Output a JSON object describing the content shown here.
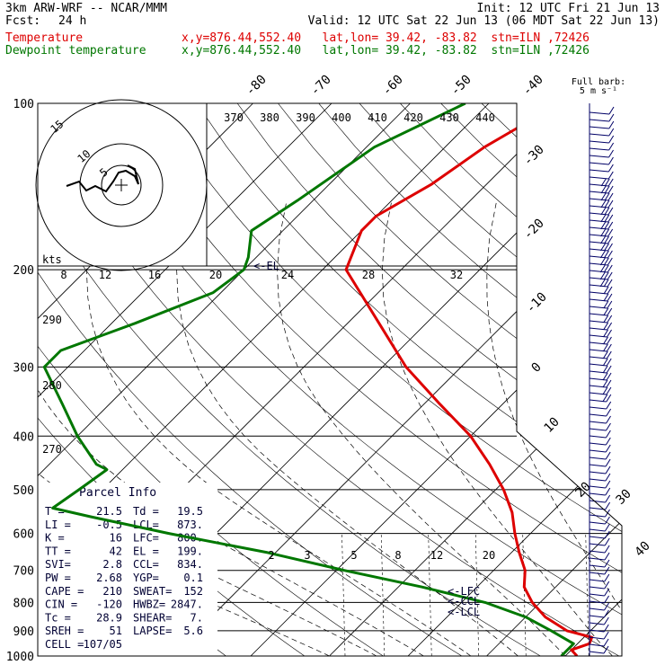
{
  "header": {
    "line1_left": "3km ARW-WRF -- NCAR/MMM",
    "line1_right": "Init: 12 UTC Fri 21 Jun 13",
    "line2_fcst_label": "Fcst:",
    "line2_fcst_value": "24 h",
    "line2_valid": "Valid: 12 UTC Sat 22 Jun 13 (06 MDT Sat 22 Jun 13)",
    "temp_label": "Temperature",
    "temp_info": "x,y=876.44,552.40   lat,lon= 39.42, -83.82  stn=ILN ,72426",
    "dew_label": "Dewpoint temperature",
    "dew_info": "x,y=876.44,552.40   lat,lon= 39.42, -83.82  stn=ILN ,72426",
    "temp_color": "#dd0000",
    "dew_color": "#007700"
  },
  "barb_legend": {
    "line1": "Full barb:",
    "line2": "5 m s⁻¹"
  },
  "hodograph": {
    "speed_unit": "kts",
    "ring_labels": [
      "5",
      "10",
      "15"
    ]
  },
  "parcel_info": {
    "title": "Parcel Info",
    "rows": [
      [
        "T  =",
        "21.5",
        "Td =",
        "19.5"
      ],
      [
        "LI =",
        "-0.5",
        "LCL=",
        "873."
      ],
      [
        "K  =",
        "16",
        "LFC=",
        "800."
      ],
      [
        "TT =",
        "42",
        "EL =",
        "199."
      ],
      [
        "SVI=",
        "2.8",
        "CCL=",
        "834."
      ],
      [
        "PW =",
        "2.68",
        "YGP=",
        "0.1"
      ],
      [
        "CAPE =",
        "210",
        "SWEAT=",
        "152"
      ],
      [
        "CIN =",
        "-120",
        "HWBZ=",
        "2847."
      ],
      [
        "Tc =",
        "28.9",
        "SHEAR=",
        "7."
      ],
      [
        "SREH =",
        "51",
        "LAPSE=",
        "5.6"
      ],
      [
        "CELL =",
        "107/05",
        "",
        ""
      ]
    ]
  },
  "level_markers": {
    "el": "<-EL",
    "lfc": "<-LFC",
    "ccl": "<-CCL",
    "lcl": "<-LCL"
  },
  "chart_data": {
    "type": "line",
    "title": "",
    "ylabel": "",
    "xlabel": "",
    "pressure_ticks": [
      100,
      200,
      300,
      400,
      500,
      600,
      700,
      800,
      900,
      1000
    ],
    "isotherm_labels": [
      "-80",
      "-70",
      "-60",
      "-50",
      "-40",
      "-30",
      "-20",
      "-10",
      "0",
      "10",
      "20",
      "30",
      "40"
    ],
    "theta_e_labels": [
      "370",
      "380",
      "390",
      "400",
      "410",
      "420",
      "430",
      "440"
    ],
    "theta_labels": [
      "290",
      "280",
      "270"
    ],
    "mixing_ratio_labels": [
      "2",
      "3",
      "5",
      "8",
      "12",
      "20"
    ],
    "hodo_axis_labels": [
      "8",
      "12",
      "16",
      "20",
      "24",
      "28",
      "32"
    ],
    "series": [
      {
        "name": "Temperature",
        "color": "#dd0000",
        "points": [
          [
            100,
            -51
          ],
          [
            120,
            -55
          ],
          [
            140,
            -57
          ],
          [
            160,
            -60
          ],
          [
            170,
            -60
          ],
          [
            200,
            -57
          ],
          [
            250,
            -46
          ],
          [
            300,
            -37
          ],
          [
            350,
            -28
          ],
          [
            400,
            -20
          ],
          [
            450,
            -14
          ],
          [
            500,
            -9
          ],
          [
            550,
            -5
          ],
          [
            600,
            -2
          ],
          [
            650,
            1
          ],
          [
            700,
            4
          ],
          [
            750,
            6
          ],
          [
            800,
            9
          ],
          [
            850,
            12.5
          ],
          [
            900,
            17
          ],
          [
            925,
            21
          ],
          [
            950,
            21.5
          ],
          [
            975,
            20
          ],
          [
            1000,
            21.5
          ]
        ]
      },
      {
        "name": "Dewpoint temperature",
        "color": "#007700",
        "points": [
          [
            100,
            -63
          ],
          [
            120,
            -69
          ],
          [
            150,
            -72
          ],
          [
            170,
            -74
          ],
          [
            190,
            -71
          ],
          [
            200,
            -70
          ],
          [
            220,
            -71
          ],
          [
            250,
            -77
          ],
          [
            280,
            -83
          ],
          [
            300,
            -83
          ],
          [
            350,
            -76
          ],
          [
            400,
            -70
          ],
          [
            450,
            -64
          ],
          [
            460,
            -62
          ],
          [
            500,
            -63
          ],
          [
            540,
            -64
          ],
          [
            560,
            -58
          ],
          [
            600,
            -46
          ],
          [
            650,
            -31
          ],
          [
            700,
            -19
          ],
          [
            750,
            -7
          ],
          [
            800,
            3
          ],
          [
            850,
            10
          ],
          [
            900,
            15
          ],
          [
            950,
            19.5
          ],
          [
            1000,
            19.5
          ]
        ]
      }
    ]
  }
}
